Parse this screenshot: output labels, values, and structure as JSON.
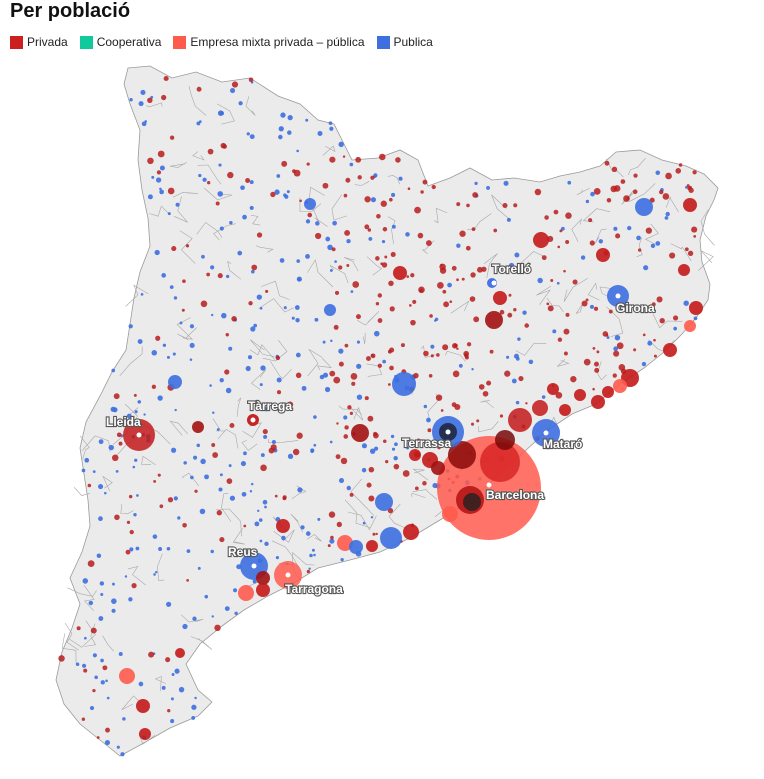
{
  "title": "Per població",
  "legend": [
    {
      "label": "Privada",
      "color": "#cc1f1f"
    },
    {
      "label": "Cooperativa",
      "color": "#12c99b"
    },
    {
      "label": "Empresa mixta privada – pública",
      "color": "#ff5b4d"
    },
    {
      "label": "Publica",
      "color": "#3d6fe0"
    }
  ],
  "cities": {
    "torello": "Torelló",
    "girona": "Girona",
    "lleida": "Lleida",
    "tarrega": "Tàrrega",
    "terrassa": "Terrassa",
    "mataro": "Mataró",
    "barcelona": "Barcelona",
    "reus": "Reus",
    "tarragona": "Tarragona"
  }
}
